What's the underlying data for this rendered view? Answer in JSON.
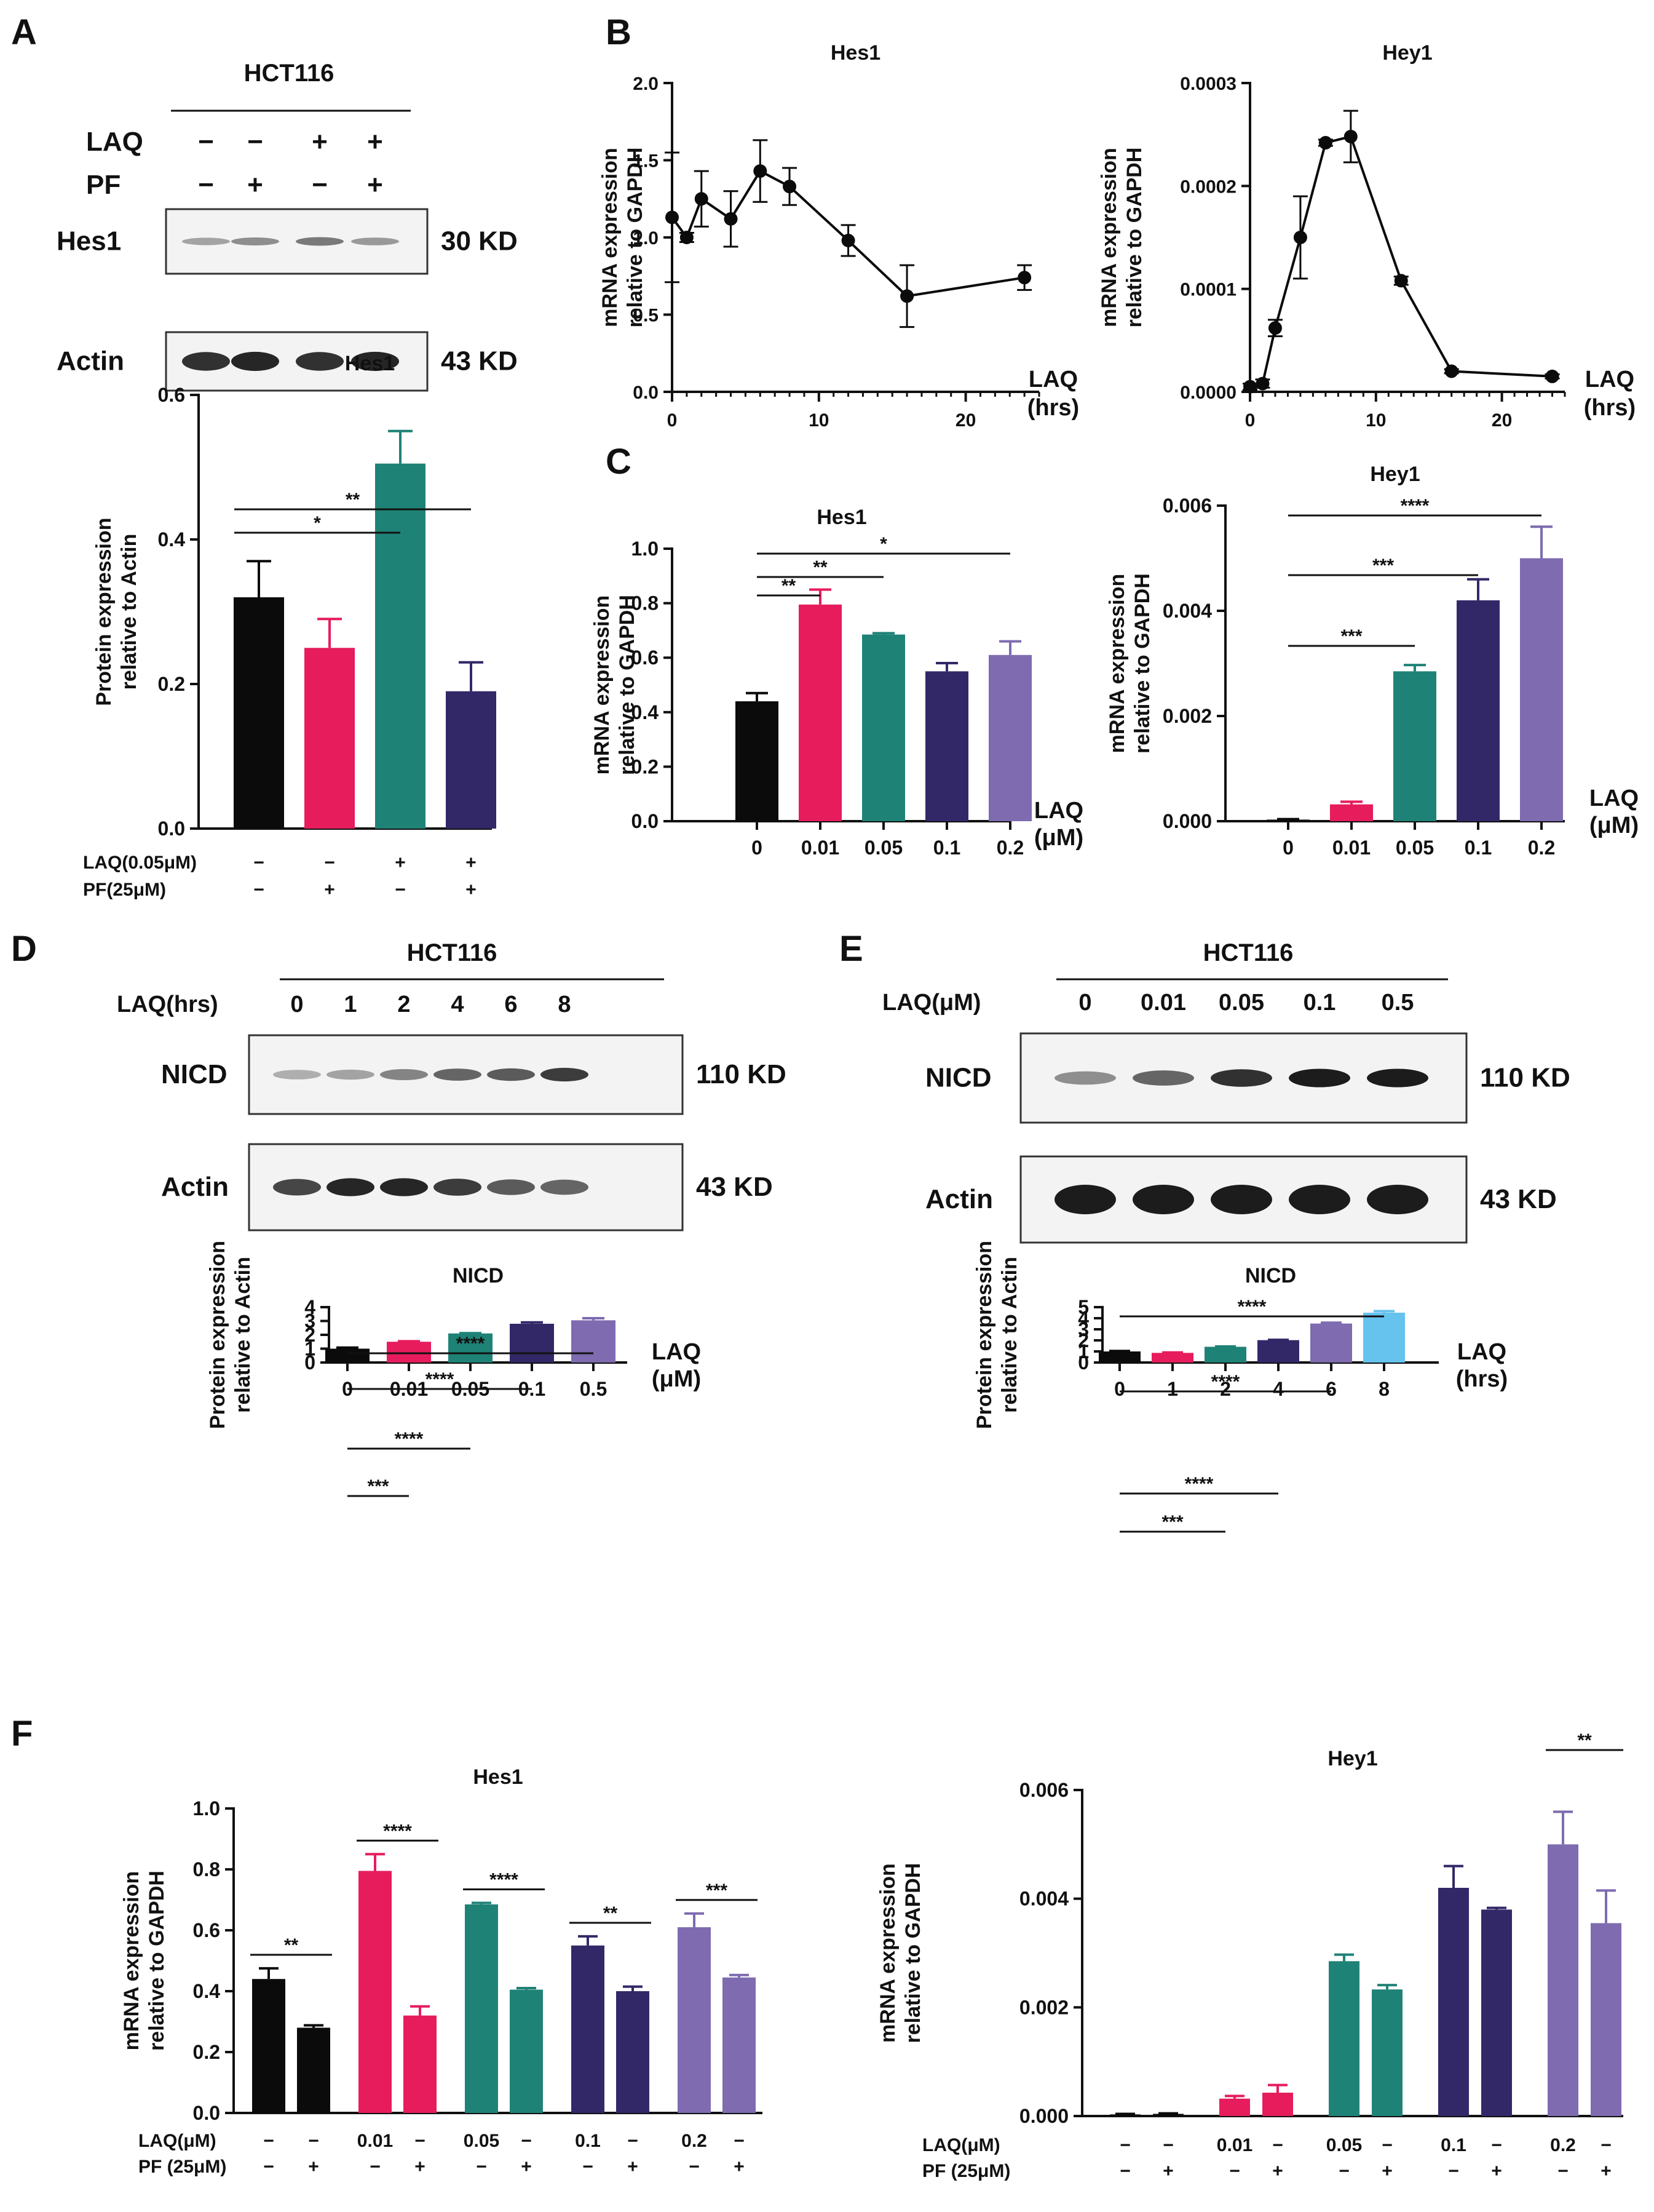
{
  "figure": {
    "panel_labels": [
      "A",
      "B",
      "C",
      "D",
      "E",
      "F"
    ]
  },
  "colors": {
    "black": "#0b0b0b",
    "pink": "#e61c5d",
    "teal": "#1f8276",
    "navy": "#322868",
    "purple": "#7e6bb0",
    "skyblue": "#66c3ee",
    "axis": "#111111"
  },
  "blots": {
    "A": {
      "cell_line": "HCT116",
      "rows": [
        {
          "name": "LAQ",
          "signs": [
            "−",
            "−",
            "+",
            "+"
          ]
        },
        {
          "name": "PF",
          "signs": [
            "−",
            "+",
            "−",
            "+"
          ]
        }
      ],
      "bands": [
        {
          "label": "Hes1",
          "size": "30 KD",
          "intensity": [
            0.35,
            0.45,
            0.55,
            0.4
          ]
        },
        {
          "label": "Actin",
          "size": "43 KD",
          "intensity": [
            0.9,
            0.95,
            0.9,
            0.95
          ]
        }
      ]
    },
    "D": {
      "cell_line": "HCT116",
      "header": "LAQ(hrs)",
      "lanes": [
        "0",
        "1",
        "2",
        "4",
        "6",
        "8"
      ],
      "bands": [
        {
          "label": "NICD",
          "size": "110 KD",
          "intensity": [
            0.3,
            0.35,
            0.5,
            0.65,
            0.7,
            0.85
          ]
        },
        {
          "label": "Actin",
          "size": "43 KD",
          "intensity": [
            0.8,
            0.95,
            0.95,
            0.85,
            0.7,
            0.65
          ]
        }
      ]
    },
    "E": {
      "cell_line": "HCT116",
      "header": "LAQ(μM)",
      "lanes": [
        "0",
        "0.01",
        "0.05",
        "0.1",
        "0.5"
      ],
      "bands": [
        {
          "label": "NICD",
          "size": "110 KD",
          "intensity": [
            0.45,
            0.65,
            0.9,
            1.0,
            1.0
          ]
        },
        {
          "label": "Actin",
          "size": "43 KD",
          "intensity": [
            1.0,
            1.0,
            1.0,
            1.0,
            1.0
          ]
        }
      ]
    }
  },
  "chart_data": [
    {
      "id": "A_bar",
      "type": "bar",
      "title": "Hes1",
      "ylabel": [
        "Protein expression",
        "relative to Actin"
      ],
      "ylim": [
        0,
        0.6
      ],
      "yticks": [
        0.0,
        0.2,
        0.4,
        0.6
      ],
      "yticklabels": [
        "0.0",
        "0.2",
        "0.4",
        "0.6"
      ],
      "values": [
        0.32,
        0.25,
        0.505,
        0.19
      ],
      "errors": [
        0.05,
        0.04,
        0.045,
        0.04
      ],
      "colors": [
        "black",
        "pink",
        "teal",
        "navy"
      ],
      "sig": [
        {
          "a": 0,
          "b": 2,
          "label": "*"
        },
        {
          "a": 0,
          "b": 3,
          "label": "**"
        }
      ],
      "conditions": [
        {
          "name": "LAQ(0.05μM)",
          "signs": [
            "−",
            "−",
            "+",
            "+"
          ]
        },
        {
          "name": "PF(25μM)",
          "signs": [
            "−",
            "+",
            "−",
            "+"
          ]
        }
      ]
    },
    {
      "id": "B_hes1",
      "type": "line",
      "title": "Hes1",
      "ylabel": [
        "mRNA expression",
        "relative to GAPDH"
      ],
      "xlabel": [
        "LAQ",
        "(hrs)"
      ],
      "x": [
        0,
        1,
        2,
        4,
        6,
        8,
        12,
        16,
        24
      ],
      "y": [
        1.13,
        1.0,
        1.25,
        1.12,
        1.43,
        1.33,
        0.98,
        0.62,
        0.74
      ],
      "errors": [
        0.42,
        0.03,
        0.18,
        0.18,
        0.2,
        0.12,
        0.1,
        0.2,
        0.08
      ],
      "xlim": [
        0,
        25
      ],
      "xticks": [
        0,
        10,
        20
      ],
      "ylim": [
        0,
        2.0
      ],
      "yticks": [
        0.0,
        0.5,
        1.0,
        1.5,
        2.0
      ],
      "yticklabels": [
        "0.0",
        "0.5",
        "1.0",
        "1.5",
        "2.0"
      ]
    },
    {
      "id": "B_hey1",
      "type": "line",
      "title": "Hey1",
      "ylabel": [
        "mRNA expression",
        "relative to GAPDH"
      ],
      "xlabel": [
        "LAQ",
        "(hrs)"
      ],
      "x": [
        0,
        1,
        2,
        4,
        6,
        8,
        12,
        16,
        24
      ],
      "y": [
        5e-06,
        8e-06,
        6.2e-05,
        0.00015,
        0.000242,
        0.000248,
        0.000108,
        2e-05,
        1.5e-05
      ],
      "errors": [
        3e-06,
        4e-06,
        8e-06,
        4e-05,
        3e-06,
        2.5e-05,
        4e-06,
        2e-06,
        2e-06
      ],
      "xlim": [
        0,
        25
      ],
      "xticks": [
        0,
        10,
        20
      ],
      "ylim": [
        0,
        0.0003
      ],
      "yticks": [
        0,
        0.0001,
        0.0002,
        0.0003
      ],
      "yticklabels": [
        "0.0000",
        "0.0001",
        "0.0002",
        "0.0003"
      ]
    },
    {
      "id": "C_hes1",
      "type": "bar",
      "title": "Hes1",
      "ylabel": [
        "mRNA expression",
        "relative to GAPDH"
      ],
      "xlabel": [
        "LAQ",
        "(μM)"
      ],
      "categories": [
        "0",
        "0.01",
        "0.05",
        "0.1",
        "0.2"
      ],
      "values": [
        0.44,
        0.795,
        0.685,
        0.55,
        0.61
      ],
      "errors": [
        0.03,
        0.055,
        0.005,
        0.03,
        0.05
      ],
      "colors": [
        "black",
        "pink",
        "teal",
        "navy",
        "purple"
      ],
      "ylim": [
        0,
        1.0
      ],
      "yticks": [
        0,
        0.2,
        0.4,
        0.6,
        0.8,
        1.0
      ],
      "yticklabels": [
        "0.0",
        "0.2",
        "0.4",
        "0.6",
        "0.8",
        "1.0"
      ],
      "sig": [
        {
          "a": 0,
          "b": 1,
          "label": "**"
        },
        {
          "a": 0,
          "b": 2,
          "label": "**"
        },
        {
          "a": 0,
          "b": 4,
          "label": "*"
        }
      ]
    },
    {
      "id": "C_hey1",
      "type": "bar",
      "title": "Hey1",
      "ylabel": [
        "mRNA expression",
        "relative to GAPDH"
      ],
      "xlabel": [
        "LAQ",
        "(μM)"
      ],
      "categories": [
        "0",
        "0.01",
        "0.05",
        "0.1",
        "0.2"
      ],
      "values": [
        3e-05,
        0.00032,
        0.00285,
        0.0042,
        0.005
      ],
      "errors": [
        1e-05,
        5e-05,
        0.00012,
        0.0004,
        0.0006
      ],
      "colors": [
        "black",
        "pink",
        "teal",
        "navy",
        "purple"
      ],
      "ylim": [
        0,
        0.006
      ],
      "yticks": [
        0,
        0.002,
        0.004,
        0.006
      ],
      "yticklabels": [
        "0.000",
        "0.002",
        "0.004",
        "0.006"
      ],
      "sig": [
        {
          "a": 0,
          "b": 2,
          "label": "***"
        },
        {
          "a": 0,
          "b": 3,
          "label": "***"
        },
        {
          "a": 0,
          "b": 4,
          "label": "****"
        }
      ]
    },
    {
      "id": "D_bar",
      "type": "bar",
      "title": "NICD",
      "ylabel": [
        "Protein expression",
        "relative to Actin"
      ],
      "xlabel": [
        "LAQ",
        "(μM)"
      ],
      "categories": [
        "0",
        "0.01",
        "0.05",
        "0.1",
        "0.5"
      ],
      "values": [
        1.0,
        1.5,
        2.1,
        2.8,
        3.05
      ],
      "errors": [
        0.08,
        0.04,
        0.02,
        0.1,
        0.15
      ],
      "colors": [
        "black",
        "pink",
        "teal",
        "navy",
        "purple"
      ],
      "ylim": [
        0,
        4
      ],
      "yticks": [
        0,
        1,
        2,
        3,
        4
      ],
      "yticklabels": [
        "0",
        "1",
        "2",
        "3",
        "4"
      ],
      "sig": [
        {
          "a": 0,
          "b": 1,
          "label": "***"
        },
        {
          "a": 0,
          "b": 2,
          "label": "****"
        },
        {
          "a": 0,
          "b": 3,
          "label": "****"
        },
        {
          "a": 0,
          "b": 4,
          "label": "****"
        }
      ]
    },
    {
      "id": "E_bar",
      "type": "bar",
      "title": "NICD",
      "ylabel": [
        "Protein expression",
        "relative to Actin"
      ],
      "xlabel": [
        "LAQ",
        "(hrs)"
      ],
      "categories": [
        "0",
        "1",
        "2",
        "4",
        "6",
        "8"
      ],
      "values": [
        1.0,
        0.87,
        1.42,
        2.02,
        3.52,
        4.5
      ],
      "errors": [
        0.04,
        0.04,
        0.03,
        0.03,
        0.08,
        0.14
      ],
      "colors": [
        "black",
        "pink",
        "teal",
        "navy",
        "purple",
        "skyblue"
      ],
      "ylim": [
        0,
        5
      ],
      "yticks": [
        0,
        1,
        2,
        3,
        4,
        5
      ],
      "yticklabels": [
        "0",
        "1",
        "2",
        "3",
        "4",
        "5"
      ],
      "sig": [
        {
          "a": 0,
          "b": 2,
          "label": "***"
        },
        {
          "a": 0,
          "b": 3,
          "label": "****"
        },
        {
          "a": 0,
          "b": 4,
          "label": "****"
        },
        {
          "a": 0,
          "b": 5,
          "label": "****"
        }
      ]
    },
    {
      "id": "F_hes1",
      "type": "bar",
      "title": "Hes1",
      "ylabel": [
        "mRNA expression",
        "relative to GAPDH"
      ],
      "values": [
        0.44,
        0.28,
        0.795,
        0.32,
        0.685,
        0.405,
        0.55,
        0.4,
        0.61,
        0.445
      ],
      "errors": [
        0.035,
        0.008,
        0.055,
        0.03,
        0.005,
        0.005,
        0.03,
        0.015,
        0.045,
        0.008
      ],
      "colors": [
        "black",
        "black",
        "pink",
        "pink",
        "teal",
        "teal",
        "navy",
        "navy",
        "purple",
        "purple"
      ],
      "ylim": [
        0,
        1.0
      ],
      "yticks": [
        0,
        0.2,
        0.4,
        0.6,
        0.8,
        1.0
      ],
      "yticklabels": [
        "0.0",
        "0.2",
        "0.4",
        "0.6",
        "0.8",
        "1.0"
      ],
      "sig": [
        {
          "a": 0,
          "b": 1,
          "label": "**"
        },
        {
          "a": 2,
          "b": 3,
          "label": "****"
        },
        {
          "a": 4,
          "b": 5,
          "label": "****"
        },
        {
          "a": 6,
          "b": 7,
          "label": "**"
        },
        {
          "a": 8,
          "b": 9,
          "label": "***"
        }
      ],
      "conditions": [
        {
          "name": "LAQ(μM)",
          "signs": [
            "−",
            "−",
            "0.01",
            "−",
            "0.05",
            "−",
            "0.1",
            "−",
            "0.2",
            "−"
          ]
        },
        {
          "name": "PF (25μM)",
          "signs": [
            "−",
            "+",
            "−",
            "+",
            "−",
            "+",
            "−",
            "+",
            "−",
            "+"
          ]
        }
      ]
    },
    {
      "id": "F_hey1",
      "type": "bar",
      "title": "Hey1",
      "ylabel": [
        "mRNA expression",
        "relative to GAPDH"
      ],
      "values": [
        3e-05,
        4e-05,
        0.00032,
        0.00043,
        0.00285,
        0.00233,
        0.0042,
        0.0038,
        0.005,
        0.00355
      ],
      "errors": [
        1e-05,
        1e-05,
        5e-05,
        0.00014,
        0.00012,
        8e-05,
        0.0004,
        3e-05,
        0.0006,
        0.0006
      ],
      "colors": [
        "black",
        "black",
        "pink",
        "pink",
        "teal",
        "teal",
        "navy",
        "navy",
        "purple",
        "purple"
      ],
      "ylim": [
        0,
        0.006
      ],
      "yticks": [
        0,
        0.002,
        0.004,
        0.006
      ],
      "yticklabels": [
        "0.000",
        "0.002",
        "0.004",
        "0.006"
      ],
      "sig": [
        {
          "a": 8,
          "b": 9,
          "label": "**"
        }
      ],
      "conditions": [
        {
          "name": "LAQ(μM)",
          "signs": [
            "−",
            "−",
            "0.01",
            "−",
            "0.05",
            "−",
            "0.1",
            "−",
            "0.2",
            "−"
          ]
        },
        {
          "name": "PF (25μM)",
          "signs": [
            "−",
            "+",
            "−",
            "+",
            "−",
            "+",
            "−",
            "+",
            "−",
            "+"
          ]
        }
      ]
    }
  ]
}
